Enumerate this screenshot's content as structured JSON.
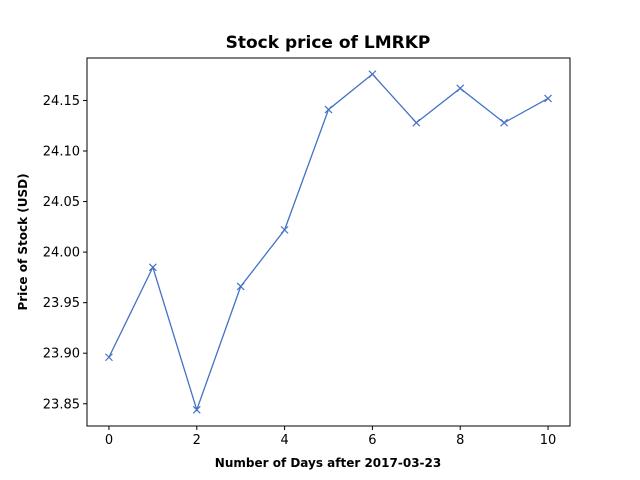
{
  "chart_data": {
    "type": "line",
    "title": "Stock price of LMRKP",
    "xlabel": "Number of Days after 2017-03-23",
    "ylabel": "Price of Stock (USD)",
    "x": [
      0,
      1,
      2,
      3,
      4,
      5,
      6,
      7,
      8,
      9,
      10
    ],
    "series": [
      {
        "values": [
          23.896,
          23.985,
          23.844,
          23.966,
          24.022,
          24.141,
          24.176,
          24.128,
          24.162,
          24.128,
          24.152
        ],
        "color": "#4472c4",
        "marker": "x"
      }
    ],
    "xlim": [
      -0.5,
      10.5
    ],
    "ylim": [
      23.828,
      24.192
    ],
    "xticks": [
      0,
      2,
      4,
      6,
      8,
      10
    ],
    "yticks": [
      23.85,
      23.9,
      23.95,
      24.0,
      24.05,
      24.1,
      24.15
    ],
    "ytick_labels": [
      "23.85",
      "23.90",
      "23.95",
      "24.00",
      "24.05",
      "24.10",
      "24.15"
    ],
    "grid": false,
    "legend": "none"
  }
}
